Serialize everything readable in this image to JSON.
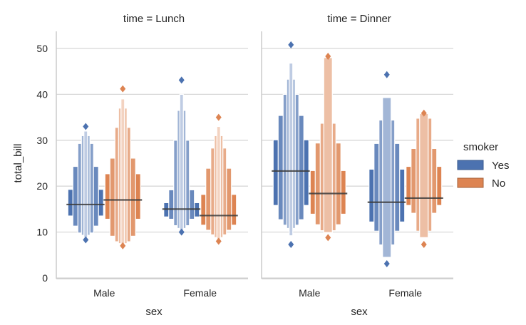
{
  "chart_data": {
    "type": "boxen",
    "ylabel": "total_bill",
    "xlabel": "sex",
    "ylim": [
      0,
      54
    ],
    "yticks": [
      0,
      10,
      20,
      30,
      40,
      50
    ],
    "categories": [
      "Male",
      "Female"
    ],
    "legend": {
      "title": "smoker",
      "position": "right",
      "entries": [
        {
          "label": "Yes",
          "color": "#4c72b0"
        },
        {
          "label": "No",
          "color": "#dd8452"
        }
      ]
    },
    "grid": true,
    "panels": [
      {
        "title": "time = Lunch",
        "groups": [
          {
            "category": "Male",
            "hue": "Yes",
            "median": 16.0,
            "levels": [
              [
                13.5,
                19.3
              ],
              [
                11.3,
                24.3
              ],
              [
                9.8,
                29.3
              ],
              [
                9.3,
                31.0
              ],
              [
                8.8,
                32.0
              ]
            ],
            "outliers": [
              8.3,
              33.0
            ]
          },
          {
            "category": "Male",
            "hue": "No",
            "median": 17.0,
            "levels": [
              [
                12.8,
                22.7
              ],
              [
                9.1,
                26.1
              ],
              [
                7.9,
                32.8
              ],
              [
                7.5,
                37.0
              ],
              [
                7.2,
                39.0
              ]
            ],
            "outliers": [
              7.0,
              41.2
            ]
          },
          {
            "category": "Female",
            "hue": "Yes",
            "median": 15.0,
            "levels": [
              [
                13.3,
                16.4
              ],
              [
                12.8,
                19.2
              ],
              [
                11.4,
                30.0
              ],
              [
                10.8,
                36.5
              ],
              [
                10.3,
                40.0
              ]
            ],
            "outliers": [
              10.0,
              43.1
            ]
          },
          {
            "category": "Female",
            "hue": "No",
            "median": 13.6,
            "levels": [
              [
                11.5,
                18.2
              ],
              [
                10.4,
                23.9
              ],
              [
                9.4,
                28.3
              ],
              [
                8.8,
                31.0
              ],
              [
                8.4,
                33.0
              ]
            ],
            "outliers": [
              8.0,
              35.0
            ]
          }
        ]
      },
      {
        "title": "time = Dinner",
        "groups": [
          {
            "category": "Male",
            "hue": "Yes",
            "median": 23.3,
            "levels": [
              [
                15.8,
                30.1
              ],
              [
                12.7,
                35.4
              ],
              [
                11.5,
                40.0
              ],
              [
                10.8,
                43.3
              ],
              [
                9.2,
                46.8
              ]
            ],
            "outliers": [
              7.3,
              50.8
            ]
          },
          {
            "category": "Male",
            "hue": "No",
            "median": 18.4,
            "levels": [
              [
                13.9,
                23.4
              ],
              [
                11.6,
                29.4
              ],
              [
                10.3,
                33.7
              ],
              [
                9.9,
                48.0
              ]
            ],
            "outliers": [
              8.8,
              48.3
            ]
          },
          {
            "category": "Female",
            "hue": "Yes",
            "median": 16.5,
            "levels": [
              [
                12.2,
                23.7
              ],
              [
                10.2,
                29.3
              ],
              [
                7.2,
                34.4
              ],
              [
                4.5,
                39.3
              ]
            ],
            "outliers": [
              3.1,
              44.3
            ]
          },
          {
            "category": "Female",
            "hue": "No",
            "median": 17.4,
            "levels": [
              [
                15.8,
                24.3
              ],
              [
                14.1,
                28.2
              ],
              [
                10.2,
                34.8
              ],
              [
                8.8,
                35.8
              ]
            ],
            "outliers": [
              7.3,
              35.9
            ]
          }
        ]
      }
    ]
  }
}
